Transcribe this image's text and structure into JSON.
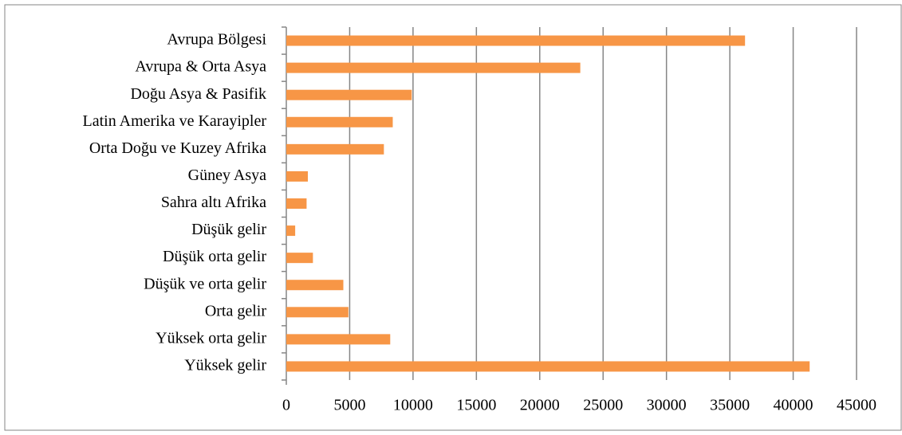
{
  "chart_data": {
    "type": "bar",
    "orientation": "horizontal",
    "categories": [
      "Avrupa Bölgesi",
      "Avrupa & Orta Asya",
      "Doğu Asya & Pasifik",
      "Latin Amerika ve Karayipler",
      "Orta Doğu ve Kuzey Afrika",
      "Güney Asya",
      "Sahra altı Afrika",
      "Düşük gelir",
      "Düşük orta gelir",
      "Düşük ve orta gelir",
      "Orta gelir",
      "Yüksek orta gelir",
      "Yüksek gelir"
    ],
    "values": [
      36200,
      23200,
      9900,
      8400,
      7700,
      1700,
      1600,
      700,
      2100,
      4500,
      4900,
      8200,
      41300
    ],
    "color": "#f79646",
    "xlim": [
      0,
      45000
    ],
    "xticks": [
      0,
      5000,
      10000,
      15000,
      20000,
      25000,
      30000,
      35000,
      40000,
      45000
    ],
    "grid": true
  }
}
